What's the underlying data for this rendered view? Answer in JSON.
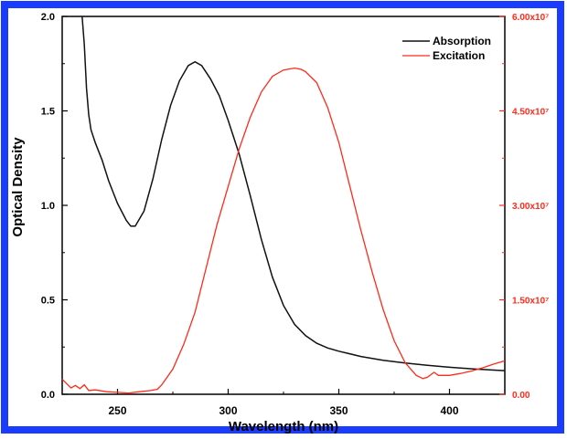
{
  "colors": {
    "border": "#1a3cff",
    "absorption": "#111111",
    "excitation": "#ff2a1a"
  },
  "chart_data": {
    "type": "line",
    "xlabel": "Wavelength (nm)",
    "ylabel_left": "Optical Density",
    "ylabel_right": "",
    "xlim": [
      225,
      425
    ],
    "ylim_left": [
      0,
      2.0
    ],
    "ylim_right": [
      0,
      60000000
    ],
    "x_ticks": [
      "250",
      "300",
      "350",
      "400"
    ],
    "y_left_ticks": [
      "0.0",
      "0.5",
      "1.0",
      "1.5",
      "2.0"
    ],
    "y_right_ticks": [
      "0.00",
      "1.50x10⁷",
      "3.00x10⁷",
      "4.50x10⁷",
      "6.00x10⁷"
    ],
    "legend_position": "top-right",
    "grid": false,
    "series": [
      {
        "name": "Absorption",
        "axis": "left",
        "color": "#111111",
        "x": [
          234,
          235,
          236,
          237,
          238,
          240,
          243,
          246,
          250,
          254,
          256,
          258,
          262,
          266,
          270,
          274,
          278,
          282,
          285,
          288,
          292,
          296,
          300,
          305,
          310,
          315,
          320,
          325,
          330,
          335,
          340,
          345,
          350,
          360,
          370,
          380,
          390,
          400,
          410,
          420,
          425
        ],
        "y": [
          2.0,
          1.85,
          1.62,
          1.48,
          1.4,
          1.33,
          1.24,
          1.13,
          1.01,
          0.92,
          0.89,
          0.89,
          0.97,
          1.14,
          1.35,
          1.53,
          1.66,
          1.74,
          1.76,
          1.74,
          1.67,
          1.58,
          1.45,
          1.27,
          1.05,
          0.82,
          0.62,
          0.47,
          0.37,
          0.31,
          0.27,
          0.245,
          0.228,
          0.2,
          0.18,
          0.165,
          0.153,
          0.143,
          0.135,
          0.128,
          0.125
        ]
      },
      {
        "name": "Excitation",
        "axis": "right",
        "color": "#ff2a1a",
        "x": [
          225,
          227,
          229,
          231,
          233,
          235,
          237,
          240,
          245,
          250,
          255,
          260,
          265,
          268,
          270,
          275,
          280,
          285,
          290,
          295,
          300,
          305,
          310,
          315,
          320,
          325,
          330,
          333,
          335,
          340,
          345,
          350,
          355,
          360,
          365,
          370,
          375,
          380,
          385,
          388,
          390,
          393,
          395,
          400,
          405,
          410,
          415,
          420,
          425
        ],
        "y": [
          2400000,
          1700000,
          1000000,
          1400000,
          900000,
          1500000,
          600000,
          700000,
          400000,
          300000,
          200000,
          400000,
          600000,
          800000,
          1500000,
          4000000,
          8000000,
          13000000,
          20000000,
          27000000,
          33000000,
          39000000,
          44000000,
          48000000,
          50500000,
          51500000,
          51800000,
          51600000,
          51200000,
          49500000,
          45500000,
          40000000,
          33000000,
          26000000,
          19500000,
          13500000,
          8500000,
          5000000,
          3000000,
          2500000,
          2700000,
          3500000,
          3000000,
          3000000,
          3300000,
          3700000,
          4200000,
          4800000,
          5300000
        ]
      }
    ]
  }
}
